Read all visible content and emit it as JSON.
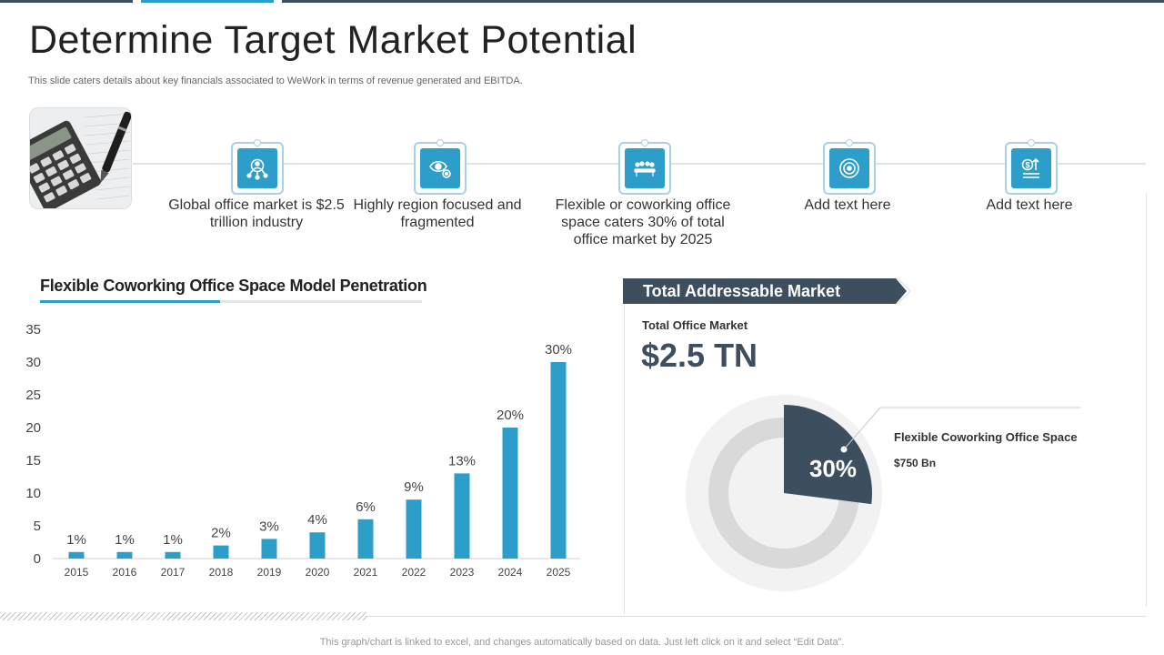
{
  "page": {
    "title": "Determine Target Market Potential",
    "subtitle": "This slide caters details about key financials associated to WeWork in terms of revenue generated and EBITDA.",
    "footnote": "This graph/chart is linked to excel,  and changes automatically based on data. Just left click on it and select “Edit Data”."
  },
  "features": [
    {
      "icon": "people-network-icon",
      "text": "Global office market is $2.5 trillion industry"
    },
    {
      "icon": "eye-gear-icon",
      "text": "Highly region focused and fragmented"
    },
    {
      "icon": "meeting-table-icon",
      "text": "Flexible or coworking office space caters 30% of total office market by 2025"
    },
    {
      "icon": "target-circle-icon",
      "text": "Add text here"
    },
    {
      "icon": "dollar-growth-icon",
      "text": "Add text here"
    }
  ],
  "tam": {
    "header": "Total Addressable Market",
    "total_label": "Total Office Market",
    "total_value": "$2.5 TN",
    "share_pct_label": "30%",
    "share_fraction": 0.3,
    "segment_label": "Flexible Coworking Office Space",
    "segment_amount": "$750 Bn"
  },
  "colors": {
    "accent": "#2c9ec9",
    "dark": "#3d4f5f",
    "ring": "#d9d9d9",
    "ring_bg": "#f2f2f2"
  },
  "chart_data": {
    "type": "bar",
    "title": "Flexible Coworking Office Space Model Penetration",
    "categories": [
      "2015",
      "2016",
      "2017",
      "2018",
      "2019",
      "2020",
      "2021",
      "2022",
      "2023",
      "2024",
      "2025"
    ],
    "values": [
      1,
      1,
      1,
      2,
      3,
      4,
      6,
      9,
      13,
      20,
      30
    ],
    "data_labels": [
      "1%",
      "1%",
      "1%",
      "2%",
      "3%",
      "4%",
      "6%",
      "9%",
      "13%",
      "20%",
      "30%"
    ],
    "yticks": [
      0,
      5,
      10,
      15,
      20,
      25,
      30,
      35
    ],
    "ylim": [
      0,
      35
    ],
    "xlabel": "",
    "ylabel": "",
    "grid": false
  }
}
